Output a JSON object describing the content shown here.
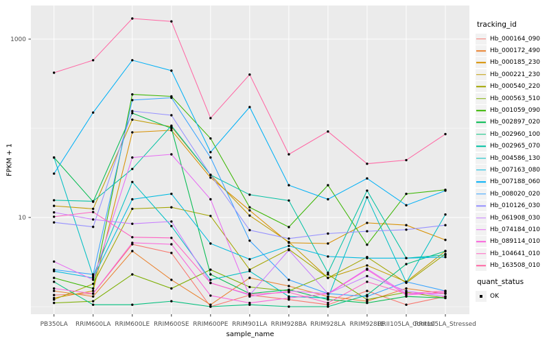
{
  "figure": {
    "background": "#FFFFFF",
    "panel_background": "#EBEBEB",
    "grid_color": "#FFFFFF",
    "tick_color": "#333333",
    "axis_text_color": "#4D4D4D",
    "point_color": "#000000",
    "legend_key_background": "#F2F2F2"
  },
  "legend": {
    "color_legend_title": "tracking_id",
    "shape_legend_title": "quant_status",
    "shape_items": [
      {
        "label": "OK",
        "marker": "black-square"
      }
    ]
  },
  "chart_data": {
    "type": "line",
    "title": "",
    "xlabel": "sample_name",
    "ylabel": "FPKM + 1",
    "x_type": "categorical",
    "y_scale": "log10",
    "y_ticks": [
      1000,
      10
    ],
    "y_minor_gridlines_at": [
      100,
      1
    ],
    "ylim": [
      0.85,
      2300
    ],
    "grid": "white major and minor gridlines on gray panel",
    "legend_position": "right",
    "point_marker": "small black dot on every vertex (quant_status = OK)",
    "categories": [
      "PB350LA",
      "RRIM600LA",
      "RRIM600LE",
      "RRIM600SE",
      "RRIM600PE",
      "RRIM901LA",
      "RRIM928BA",
      "RRIM928LA",
      "RRIM928LE",
      "RRII105LA_Control",
      "RRII105LA_Stressed"
    ],
    "series": [
      {
        "name": "Hb_000164_090",
        "color": "#F8766D",
        "values": [
          1.35,
          1.4,
          5.0,
          4.0,
          1.0,
          1.35,
          1.2,
          1.05,
          1.5,
          1.05,
          1.3
        ]
      },
      {
        "name": "Hb_000172_490",
        "color": "#EA8331",
        "values": [
          1.5,
          1.3,
          4.2,
          2.0,
          1.05,
          2.1,
          1.7,
          1.3,
          1.15,
          1.6,
          1.4
        ]
      },
      {
        "name": "Hb_000185_230",
        "color": "#D89000",
        "values": [
          1.25,
          1.5,
          90,
          95,
          28,
          12,
          5.2,
          5.1,
          8.7,
          8.2,
          5.6
        ]
      },
      {
        "name": "Hb_000221_230",
        "color": "#C09B00",
        "values": [
          13.5,
          12.5,
          125,
          104,
          30,
          10.5,
          5.3,
          2.1,
          2.9,
          1.9,
          4.2
        ]
      },
      {
        "name": "Hb_000540_220",
        "color": "#A3A500",
        "values": [
          1.2,
          1.8,
          12.5,
          13,
          10.4,
          2.6,
          4.4,
          2.1,
          3.6,
          1.85,
          3.9
        ]
      },
      {
        "name": "Hb_000563_510",
        "color": "#7CAE00",
        "values": [
          1.1,
          1.15,
          2.3,
          1.6,
          2.6,
          1.66,
          1.5,
          2.3,
          1.2,
          1.45,
          1.25
        ]
      },
      {
        "name": "Hb_001059_090",
        "color": "#39B600",
        "values": [
          2.1,
          1.6,
          240,
          228,
          77,
          13,
          7.8,
          23,
          4.95,
          18.4,
          20.4
        ]
      },
      {
        "name": "Hb_002897_020",
        "color": "#00BB4E",
        "values": [
          47,
          15,
          148,
          100,
          2.3,
          1.4,
          1.55,
          1.2,
          1.1,
          1.3,
          1.25
        ]
      },
      {
        "name": "Hb_002960_100",
        "color": "#00BF7D",
        "values": [
          1.9,
          1.05,
          1.05,
          1.15,
          1.0,
          1.05,
          1.0,
          1.0,
          1.35,
          3.0,
          4.2
        ]
      },
      {
        "name": "Hb_002965_070",
        "color": "#00C1A3",
        "values": [
          15.6,
          15.2,
          35,
          107,
          30,
          18,
          15.5,
          2.4,
          20,
          3.5,
          3.8
        ]
      },
      {
        "name": "Hb_004586_130",
        "color": "#00BFC4",
        "values": [
          47,
          2.2,
          25,
          8,
          2.0,
          2.5,
          1.3,
          1.25,
          16.8,
          1.87,
          10.8
        ]
      },
      {
        "name": "Hb_007163_080",
        "color": "#00BAE0",
        "values": [
          2.5,
          2.1,
          16,
          18.4,
          5.1,
          3.4,
          4.8,
          3.65,
          3.5,
          3.5,
          3.6
        ]
      },
      {
        "name": "Hb_007188_060",
        "color": "#00B0F6",
        "values": [
          31,
          150,
          580,
          443,
          54,
          173,
          23,
          16,
          27.4,
          13.7,
          20
        ]
      },
      {
        "name": "Hb_008020_020",
        "color": "#35A2FF",
        "values": [
          2.6,
          2.3,
          207,
          220,
          47,
          5.5,
          2.0,
          1.4,
          1.3,
          1.9,
          1.5
        ]
      },
      {
        "name": "Hb_010126_030",
        "color": "#9590FF",
        "values": [
          8.8,
          7.85,
          156,
          140,
          30,
          7.2,
          5.8,
          6.6,
          7.0,
          7.3,
          8.2
        ]
      },
      {
        "name": "Hb_061908_030",
        "color": "#C77CFF",
        "values": [
          11.4,
          9.5,
          8.5,
          9.0,
          1.85,
          1.35,
          4.3,
          1.4,
          2.2,
          1.5,
          1.3
        ]
      },
      {
        "name": "Hb_074184_010",
        "color": "#E76BF3",
        "values": [
          3.2,
          2.0,
          47,
          51,
          16,
          1.3,
          1.5,
          1.4,
          2.66,
          1.4,
          1.4
        ]
      },
      {
        "name": "Hb_089114_010",
        "color": "#FA62DB",
        "values": [
          1.6,
          1.4,
          5.2,
          5.0,
          1.33,
          1.1,
          1.25,
          1.39,
          2.6,
          1.35,
          1.45
        ]
      },
      {
        "name": "Hb_104641_010",
        "color": "#FF61C3",
        "values": [
          10.2,
          11.5,
          6.0,
          5.9,
          1.84,
          1.37,
          1.45,
          1.1,
          1.9,
          1.4,
          1.5
        ]
      },
      {
        "name": "Hb_163508_010",
        "color": "#FF67A4",
        "values": [
          420,
          580,
          1700,
          1580,
          130,
          400,
          51,
          92,
          40,
          44,
          86
        ]
      }
    ]
  }
}
